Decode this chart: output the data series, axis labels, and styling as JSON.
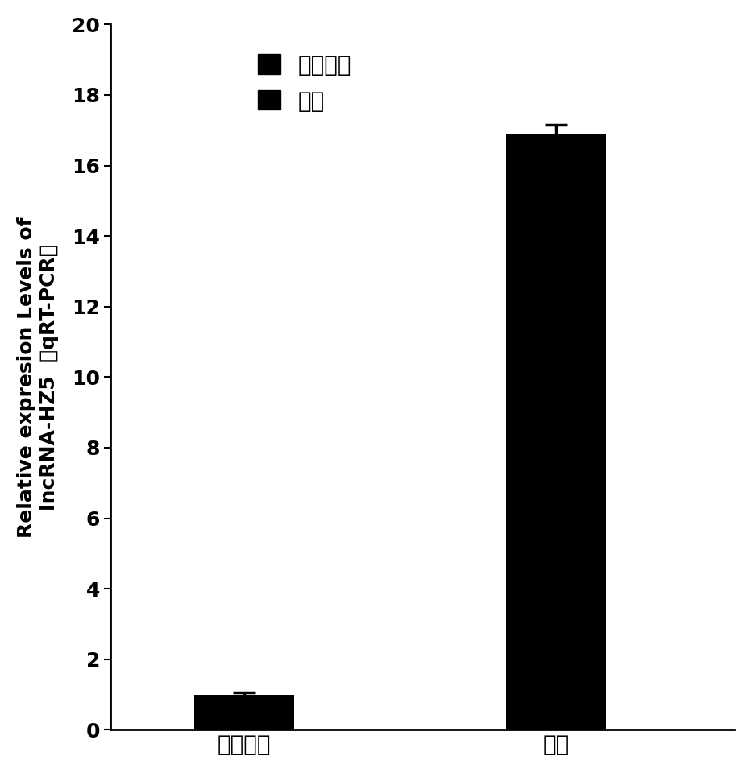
{
  "categories": [
    "卫星细胞",
    "肌管"
  ],
  "values": [
    1.0,
    16.9
  ],
  "errors": [
    0.05,
    0.25
  ],
  "bar_color": "#000000",
  "bar_width": 0.45,
  "ylim": [
    0,
    20
  ],
  "yticks": [
    0,
    2,
    4,
    6,
    8,
    10,
    12,
    14,
    16,
    18,
    20
  ],
  "ylabel_line1": "Relative expresion Levels of",
  "ylabel_line2": "lncRNA-HZ5",
  "ylabel_line3": "（qRT-PCR）",
  "ylabel_fontsize": 18,
  "tick_fontsize": 18,
  "xlabel_fontsize": 20,
  "legend_labels": [
    "卫星细胞",
    "肌管"
  ],
  "background_color": "#ffffff"
}
